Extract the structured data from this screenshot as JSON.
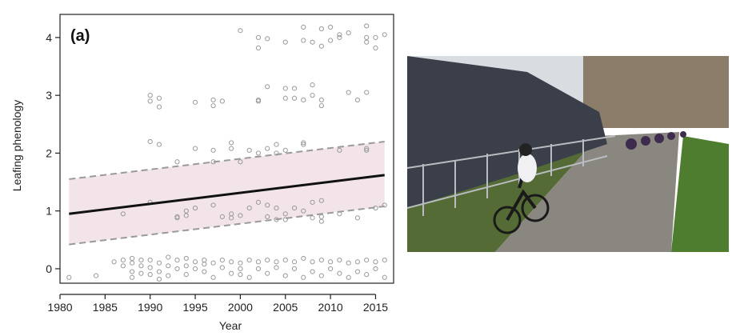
{
  "chart_data": {
    "type": "scatter",
    "panel_label": "(a)",
    "xlabel": "Year",
    "ylabel": "Leafing phenology",
    "xlim": [
      1980,
      2017
    ],
    "ylim": [
      -0.25,
      4.4
    ],
    "xticks": [
      1980,
      1985,
      1990,
      1995,
      2000,
      2005,
      2010,
      2015
    ],
    "yticks": [
      0,
      1,
      2,
      3,
      4
    ],
    "grid": false,
    "points": [
      {
        "x": 1981,
        "y": -0.15
      },
      {
        "x": 1984,
        "y": -0.12
      },
      {
        "x": 1986,
        "y": 0.12
      },
      {
        "x": 1987,
        "y": 0.15
      },
      {
        "x": 1987,
        "y": 0.95
      },
      {
        "x": 1987,
        "y": 0.05
      },
      {
        "x": 1988,
        "y": 0.18
      },
      {
        "x": 1988,
        "y": -0.05
      },
      {
        "x": 1988,
        "y": -0.15
      },
      {
        "x": 1988,
        "y": 0.1
      },
      {
        "x": 1989,
        "y": 0.15
      },
      {
        "x": 1989,
        "y": 0.05
      },
      {
        "x": 1989,
        "y": -0.08
      },
      {
        "x": 1990,
        "y": 0.15
      },
      {
        "x": 1990,
        "y": -0.1
      },
      {
        "x": 1990,
        "y": 0.02
      },
      {
        "x": 1990,
        "y": 2.2
      },
      {
        "x": 1990,
        "y": 3.0
      },
      {
        "x": 1990,
        "y": 2.9
      },
      {
        "x": 1990,
        "y": 1.15
      },
      {
        "x": 1991,
        "y": 0.1
      },
      {
        "x": 1991,
        "y": -0.18
      },
      {
        "x": 1991,
        "y": -0.05
      },
      {
        "x": 1991,
        "y": 2.15
      },
      {
        "x": 1991,
        "y": 2.95
      },
      {
        "x": 1991,
        "y": 2.8
      },
      {
        "x": 1992,
        "y": 0.2
      },
      {
        "x": 1992,
        "y": 0.05
      },
      {
        "x": 1992,
        "y": -0.12
      },
      {
        "x": 1993,
        "y": 0.15
      },
      {
        "x": 1993,
        "y": 0.0
      },
      {
        "x": 1993,
        "y": 1.85
      },
      {
        "x": 1993,
        "y": 0.88
      },
      {
        "x": 1993,
        "y": 0.9
      },
      {
        "x": 1994,
        "y": 0.18
      },
      {
        "x": 1994,
        "y": 0.05
      },
      {
        "x": 1994,
        "y": -0.1
      },
      {
        "x": 1994,
        "y": 1.0
      },
      {
        "x": 1994,
        "y": 0.92
      },
      {
        "x": 1995,
        "y": 0.12
      },
      {
        "x": 1995,
        "y": 0.0
      },
      {
        "x": 1995,
        "y": 2.08
      },
      {
        "x": 1995,
        "y": 2.88
      },
      {
        "x": 1995,
        "y": 1.05
      },
      {
        "x": 1996,
        "y": 0.15
      },
      {
        "x": 1996,
        "y": -0.05
      },
      {
        "x": 1996,
        "y": 0.08
      },
      {
        "x": 1997,
        "y": 0.1
      },
      {
        "x": 1997,
        "y": -0.15
      },
      {
        "x": 1997,
        "y": 2.05
      },
      {
        "x": 1997,
        "y": 1.85
      },
      {
        "x": 1997,
        "y": 2.92
      },
      {
        "x": 1997,
        "y": 2.82
      },
      {
        "x": 1997,
        "y": 1.1
      },
      {
        "x": 1998,
        "y": 0.15
      },
      {
        "x": 1998,
        "y": 0.02
      },
      {
        "x": 1998,
        "y": 2.9
      },
      {
        "x": 1998,
        "y": 0.9
      },
      {
        "x": 1999,
        "y": 0.12
      },
      {
        "x": 1999,
        "y": -0.08
      },
      {
        "x": 1999,
        "y": 2.18
      },
      {
        "x": 1999,
        "y": 2.08
      },
      {
        "x": 1999,
        "y": 0.95
      },
      {
        "x": 1999,
        "y": 0.88
      },
      {
        "x": 2000,
        "y": 0.1
      },
      {
        "x": 2000,
        "y": -0.1
      },
      {
        "x": 2000,
        "y": 0.0
      },
      {
        "x": 2000,
        "y": 4.12
      },
      {
        "x": 2000,
        "y": 1.85
      },
      {
        "x": 2000,
        "y": 0.92
      },
      {
        "x": 2001,
        "y": 0.15
      },
      {
        "x": 2001,
        "y": -0.15
      },
      {
        "x": 2001,
        "y": 2.05
      },
      {
        "x": 2001,
        "y": 1.05
      },
      {
        "x": 2002,
        "y": 0.12
      },
      {
        "x": 2002,
        "y": 0.0
      },
      {
        "x": 2002,
        "y": 4.0
      },
      {
        "x": 2002,
        "y": 3.82
      },
      {
        "x": 2002,
        "y": 2.92
      },
      {
        "x": 2002,
        "y": 2.9
      },
      {
        "x": 2002,
        "y": 2.0
      },
      {
        "x": 2002,
        "y": 1.15
      },
      {
        "x": 2003,
        "y": 0.15
      },
      {
        "x": 2003,
        "y": -0.08
      },
      {
        "x": 2003,
        "y": 3.98
      },
      {
        "x": 2003,
        "y": 3.15
      },
      {
        "x": 2003,
        "y": 2.08
      },
      {
        "x": 2003,
        "y": 1.1
      },
      {
        "x": 2003,
        "y": 0.9
      },
      {
        "x": 2004,
        "y": 0.12
      },
      {
        "x": 2004,
        "y": 0.02
      },
      {
        "x": 2004,
        "y": 2.15
      },
      {
        "x": 2004,
        "y": 2.0
      },
      {
        "x": 2004,
        "y": 1.05
      },
      {
        "x": 2004,
        "y": 0.85
      },
      {
        "x": 2005,
        "y": 0.15
      },
      {
        "x": 2005,
        "y": -0.12
      },
      {
        "x": 2005,
        "y": 3.92
      },
      {
        "x": 2005,
        "y": 3.12
      },
      {
        "x": 2005,
        "y": 2.95
      },
      {
        "x": 2005,
        "y": 2.05
      },
      {
        "x": 2005,
        "y": 0.95
      },
      {
        "x": 2005,
        "y": 0.85
      },
      {
        "x": 2006,
        "y": 0.12
      },
      {
        "x": 2006,
        "y": 0.0
      },
      {
        "x": 2006,
        "y": 3.12
      },
      {
        "x": 2006,
        "y": 2.95
      },
      {
        "x": 2006,
        "y": 1.05
      },
      {
        "x": 2007,
        "y": 0.18
      },
      {
        "x": 2007,
        "y": -0.15
      },
      {
        "x": 2007,
        "y": 4.18
      },
      {
        "x": 2007,
        "y": 3.95
      },
      {
        "x": 2007,
        "y": 2.92
      },
      {
        "x": 2007,
        "y": 2.18
      },
      {
        "x": 2007,
        "y": 2.15
      },
      {
        "x": 2007,
        "y": 1.0
      },
      {
        "x": 2008,
        "y": 0.12
      },
      {
        "x": 2008,
        "y": -0.05
      },
      {
        "x": 2008,
        "y": 3.92
      },
      {
        "x": 2008,
        "y": 3.18
      },
      {
        "x": 2008,
        "y": 3.0
      },
      {
        "x": 2008,
        "y": 1.15
      },
      {
        "x": 2008,
        "y": 0.88
      },
      {
        "x": 2009,
        "y": 0.15
      },
      {
        "x": 2009,
        "y": -0.12
      },
      {
        "x": 2009,
        "y": 4.15
      },
      {
        "x": 2009,
        "y": 3.85
      },
      {
        "x": 2009,
        "y": 2.92
      },
      {
        "x": 2009,
        "y": 2.82
      },
      {
        "x": 2009,
        "y": 1.18
      },
      {
        "x": 2009,
        "y": 0.82
      },
      {
        "x": 2009,
        "y": 0.9
      },
      {
        "x": 2010,
        "y": 0.12
      },
      {
        "x": 2010,
        "y": 0.0
      },
      {
        "x": 2010,
        "y": 4.18
      },
      {
        "x": 2010,
        "y": 3.95
      },
      {
        "x": 2011,
        "y": 0.15
      },
      {
        "x": 2011,
        "y": -0.08
      },
      {
        "x": 2011,
        "y": 4.05
      },
      {
        "x": 2011,
        "y": 4.0
      },
      {
        "x": 2011,
        "y": 2.05
      },
      {
        "x": 2011,
        "y": 0.95
      },
      {
        "x": 2012,
        "y": 0.1
      },
      {
        "x": 2012,
        "y": -0.15
      },
      {
        "x": 2012,
        "y": 4.08
      },
      {
        "x": 2012,
        "y": 3.05
      },
      {
        "x": 2013,
        "y": 0.12
      },
      {
        "x": 2013,
        "y": -0.05
      },
      {
        "x": 2013,
        "y": 2.92
      },
      {
        "x": 2013,
        "y": 0.88
      },
      {
        "x": 2014,
        "y": 0.15
      },
      {
        "x": 2014,
        "y": -0.1
      },
      {
        "x": 2014,
        "y": 4.2
      },
      {
        "x": 2014,
        "y": 4.0
      },
      {
        "x": 2014,
        "y": 3.92
      },
      {
        "x": 2014,
        "y": 3.05
      },
      {
        "x": 2014,
        "y": 2.08
      },
      {
        "x": 2014,
        "y": 2.05
      },
      {
        "x": 2015,
        "y": 0.12
      },
      {
        "x": 2015,
        "y": 0.0
      },
      {
        "x": 2015,
        "y": 4.0
      },
      {
        "x": 2015,
        "y": 3.82
      },
      {
        "x": 2015,
        "y": 1.05
      },
      {
        "x": 2016,
        "y": 0.15
      },
      {
        "x": 2016,
        "y": -0.15
      },
      {
        "x": 2016,
        "y": 4.05
      },
      {
        "x": 2016,
        "y": 1.1
      }
    ],
    "trend_line": {
      "x": [
        1981,
        2016
      ],
      "y": [
        0.95,
        1.62
      ]
    },
    "confidence_band": {
      "x": [
        1981,
        2016
      ],
      "lower": [
        0.42,
        1.08
      ],
      "upper": [
        1.55,
        2.2
      ]
    },
    "colors": {
      "points": "#9a9a9a",
      "trend": "#111111",
      "band_fill": "#f2e4e8",
      "band_edge": "#9a9a9a",
      "axes": "#222222"
    }
  },
  "photo": {
    "icon": "cycling-race-photo-icon",
    "colors": {
      "sky": "#d8dde2",
      "grass": "#4f7d2f",
      "cobbles": "#8a8680",
      "crowd": "#3a3f4a",
      "barrier": "#b9bcc0"
    }
  }
}
